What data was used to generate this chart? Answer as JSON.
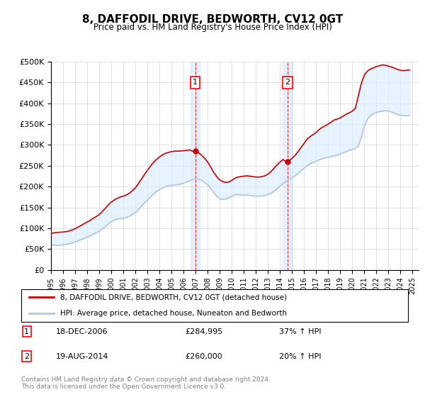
{
  "title": "8, DAFFODIL DRIVE, BEDWORTH, CV12 0GT",
  "subtitle": "Price paid vs. HM Land Registry's House Price Index (HPI)",
  "ylabel_ticks": [
    "£0",
    "£50K",
    "£100K",
    "£150K",
    "£200K",
    "£250K",
    "£300K",
    "£350K",
    "£400K",
    "£450K",
    "£500K"
  ],
  "ylim": [
    0,
    500000
  ],
  "ytick_vals": [
    0,
    50000,
    100000,
    150000,
    200000,
    250000,
    300000,
    350000,
    400000,
    450000,
    500000
  ],
  "xmin": 1995.0,
  "xmax": 2025.5,
  "xticks": [
    1995,
    1996,
    1997,
    1998,
    1999,
    2000,
    2001,
    2002,
    2003,
    2004,
    2005,
    2006,
    2007,
    2008,
    2009,
    2010,
    2011,
    2012,
    2013,
    2014,
    2015,
    2016,
    2017,
    2018,
    2019,
    2020,
    2021,
    2022,
    2023,
    2024,
    2025
  ],
  "purchase1_x": 2006.96,
  "purchase1_y": 284995,
  "purchase1_label": "1",
  "purchase1_date": "18-DEC-2006",
  "purchase1_price": "£284,995",
  "purchase1_hpi": "37% ↑ HPI",
  "purchase2_x": 2014.63,
  "purchase2_y": 260000,
  "purchase2_label": "2",
  "purchase2_date": "19-AUG-2014",
  "purchase2_price": "£260,000",
  "purchase2_hpi": "20% ↑ HPI",
  "hpi_line_color": "#aec6e8",
  "price_line_color": "#cc0000",
  "purchase_dot_color": "#cc0000",
  "shaded_region_color": "#ddeeff",
  "legend_label_price": "8, DAFFODIL DRIVE, BEDWORTH, CV12 0GT (detached house)",
  "legend_label_hpi": "HPI: Average price, detached house, Nuneaton and Bedworth",
  "footer": "Contains HM Land Registry data © Crown copyright and database right 2024.\nThis data is licensed under the Open Government Licence v3.0.",
  "hpi_data_x": [
    1995.0,
    1995.25,
    1995.5,
    1995.75,
    1996.0,
    1996.25,
    1996.5,
    1996.75,
    1997.0,
    1997.25,
    1997.5,
    1997.75,
    1998.0,
    1998.25,
    1998.5,
    1998.75,
    1999.0,
    1999.25,
    1999.5,
    1999.75,
    2000.0,
    2000.25,
    2000.5,
    2000.75,
    2001.0,
    2001.25,
    2001.5,
    2001.75,
    2002.0,
    2002.25,
    2002.5,
    2002.75,
    2003.0,
    2003.25,
    2003.5,
    2003.75,
    2004.0,
    2004.25,
    2004.5,
    2004.75,
    2005.0,
    2005.25,
    2005.5,
    2005.75,
    2006.0,
    2006.25,
    2006.5,
    2006.75,
    2007.0,
    2007.25,
    2007.5,
    2007.75,
    2008.0,
    2008.25,
    2008.5,
    2008.75,
    2009.0,
    2009.25,
    2009.5,
    2009.75,
    2010.0,
    2010.25,
    2010.5,
    2010.75,
    2011.0,
    2011.25,
    2011.5,
    2011.75,
    2012.0,
    2012.25,
    2012.5,
    2012.75,
    2013.0,
    2013.25,
    2013.5,
    2013.75,
    2014.0,
    2014.25,
    2014.5,
    2014.75,
    2015.0,
    2015.25,
    2015.5,
    2015.75,
    2016.0,
    2016.25,
    2016.5,
    2016.75,
    2017.0,
    2017.25,
    2017.5,
    2017.75,
    2018.0,
    2018.25,
    2018.5,
    2018.75,
    2019.0,
    2019.25,
    2019.5,
    2019.75,
    2020.0,
    2020.25,
    2020.5,
    2020.75,
    2021.0,
    2021.25,
    2021.5,
    2021.75,
    2022.0,
    2022.25,
    2022.5,
    2022.75,
    2023.0,
    2023.25,
    2023.5,
    2023.75,
    2024.0,
    2024.25,
    2024.5,
    2024.75
  ],
  "hpi_data_y": [
    60000,
    59500,
    59000,
    59500,
    60500,
    61500,
    63000,
    65000,
    67000,
    70000,
    73000,
    76000,
    79000,
    82000,
    86000,
    89000,
    93000,
    98000,
    104000,
    110000,
    116000,
    120000,
    122000,
    123000,
    124000,
    126000,
    129000,
    133000,
    138000,
    145000,
    153000,
    161000,
    168000,
    175000,
    182000,
    188000,
    193000,
    197000,
    200000,
    202000,
    203000,
    204000,
    205000,
    206000,
    208000,
    211000,
    214000,
    217000,
    219000,
    218000,
    215000,
    210000,
    204000,
    196000,
    186000,
    177000,
    171000,
    169000,
    170000,
    173000,
    177000,
    180000,
    181000,
    180000,
    179000,
    180000,
    179000,
    178000,
    177000,
    177000,
    178000,
    179000,
    181000,
    184000,
    189000,
    195000,
    201000,
    207000,
    213000,
    217000,
    221000,
    226000,
    232000,
    238000,
    244000,
    250000,
    255000,
    258000,
    261000,
    264000,
    267000,
    269000,
    270000,
    272000,
    274000,
    276000,
    278000,
    281000,
    284000,
    287000,
    289000,
    292000,
    297000,
    320000,
    345000,
    362000,
    370000,
    375000,
    378000,
    380000,
    381000,
    382000,
    381000,
    379000,
    376000,
    373000,
    371000,
    370000,
    370000,
    371000
  ],
  "price_data_x": [
    1995.0,
    1995.25,
    1995.5,
    1995.75,
    1996.0,
    1996.25,
    1996.5,
    1996.75,
    1997.0,
    1997.25,
    1997.5,
    1997.75,
    1998.0,
    1998.25,
    1998.5,
    1998.75,
    1999.0,
    1999.25,
    1999.5,
    1999.75,
    2000.0,
    2000.25,
    2000.5,
    2000.75,
    2001.0,
    2001.25,
    2001.5,
    2001.75,
    2002.0,
    2002.25,
    2002.5,
    2002.75,
    2003.0,
    2003.25,
    2003.5,
    2003.75,
    2004.0,
    2004.25,
    2004.5,
    2004.75,
    2005.0,
    2005.25,
    2005.5,
    2005.75,
    2006.0,
    2006.25,
    2006.5,
    2006.75,
    2007.0,
    2007.25,
    2007.5,
    2007.75,
    2008.0,
    2008.25,
    2008.5,
    2008.75,
    2009.0,
    2009.25,
    2009.5,
    2009.75,
    2010.0,
    2010.25,
    2010.5,
    2010.75,
    2011.0,
    2011.25,
    2011.5,
    2011.75,
    2012.0,
    2012.25,
    2012.5,
    2012.75,
    2013.0,
    2013.25,
    2013.5,
    2013.75,
    2014.0,
    2014.25,
    2014.5,
    2014.75,
    2015.0,
    2015.25,
    2015.5,
    2015.75,
    2016.0,
    2016.25,
    2016.5,
    2016.75,
    2017.0,
    2017.25,
    2017.5,
    2017.75,
    2018.0,
    2018.25,
    2018.5,
    2018.75,
    2019.0,
    2019.25,
    2019.5,
    2019.75,
    2020.0,
    2020.25,
    2020.5,
    2020.75,
    2021.0,
    2021.25,
    2021.5,
    2021.75,
    2022.0,
    2022.25,
    2022.5,
    2022.75,
    2023.0,
    2023.25,
    2023.5,
    2023.75,
    2024.0,
    2024.25,
    2024.5,
    2024.75
  ],
  "price_data_y": [
    88000,
    89000,
    90000,
    90500,
    91000,
    92000,
    93500,
    96000,
    99000,
    103000,
    107000,
    111000,
    115000,
    119000,
    124000,
    128000,
    133000,
    140000,
    148000,
    156000,
    163000,
    168000,
    172000,
    175000,
    177000,
    180000,
    184000,
    190000,
    197000,
    207000,
    218000,
    229000,
    239000,
    249000,
    258000,
    265000,
    271000,
    276000,
    280000,
    282000,
    284000,
    285000,
    285000,
    285500,
    286000,
    287000,
    288000,
    285000,
    284500,
    281000,
    275000,
    268000,
    259000,
    247000,
    234000,
    224000,
    216000,
    212000,
    210000,
    211000,
    215000,
    220000,
    223000,
    224000,
    225000,
    226000,
    225000,
    224000,
    223000,
    223000,
    224000,
    226000,
    230000,
    236000,
    244000,
    252000,
    259000,
    265000,
    260000,
    262000,
    268000,
    275000,
    284000,
    294000,
    304000,
    314000,
    320000,
    325000,
    330000,
    337000,
    342000,
    346000,
    350000,
    355000,
    360000,
    362000,
    365000,
    369000,
    374000,
    377000,
    381000,
    388000,
    418000,
    448000,
    468000,
    477000,
    482000,
    485000,
    488000,
    490000,
    492000,
    491000,
    489000,
    487000,
    484000,
    481000,
    479000,
    478000,
    479000,
    480000
  ]
}
